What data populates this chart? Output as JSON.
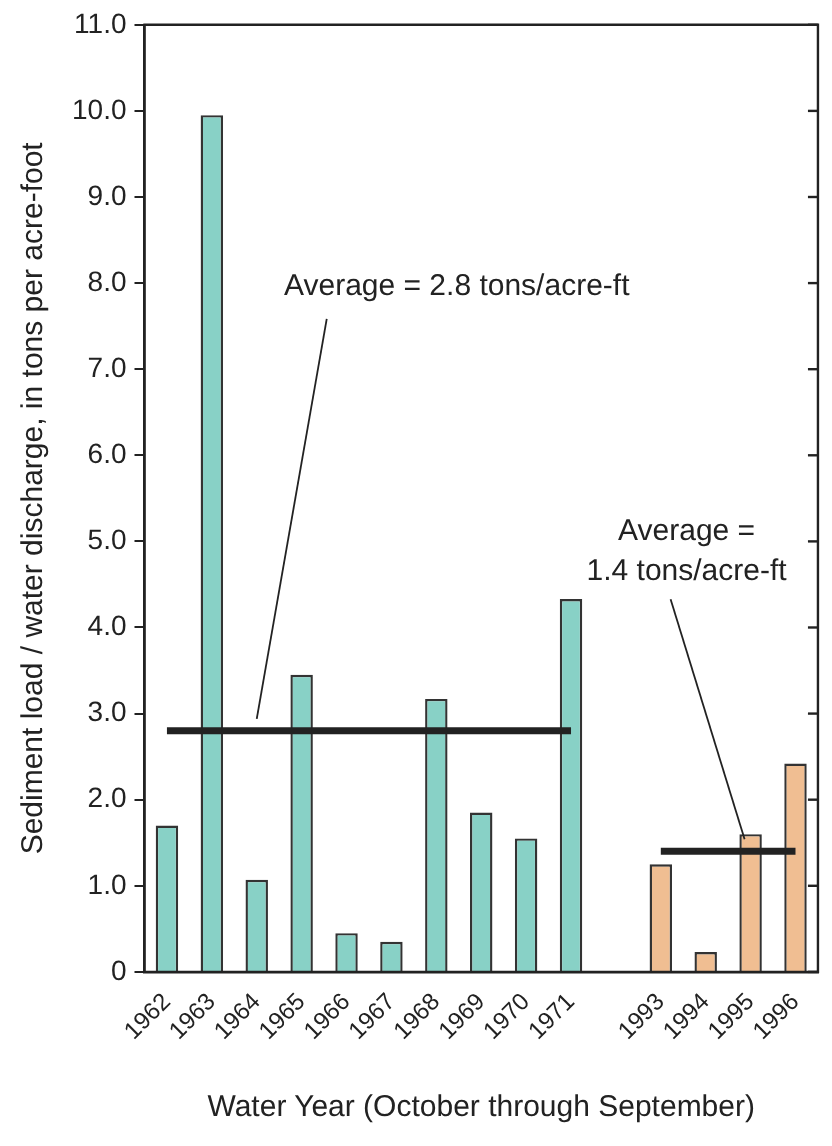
{
  "chart_data": {
    "type": "bar",
    "xlabel": "Water Year (October through September)",
    "ylabel": "Sediment load / water discharge, in tons per acre-foot",
    "categories": [
      "1962",
      "1963",
      "1964",
      "1965",
      "1966",
      "1967",
      "1968",
      "1969",
      "1970",
      "1971",
      null,
      "1993",
      "1994",
      "1995",
      "1996"
    ],
    "series": [
      {
        "values": [
          1.7,
          9.95,
          1.07,
          3.45,
          0.45,
          0.35,
          3.17,
          1.85,
          1.55,
          4.33,
          null,
          1.25,
          0.23,
          1.6,
          2.42
        ],
        "colors": [
          "#88d1c6",
          "#88d1c6",
          "#88d1c6",
          "#88d1c6",
          "#88d1c6",
          "#88d1c6",
          "#88d1c6",
          "#88d1c6",
          "#88d1c6",
          "#88d1c6",
          null,
          "#f0be92",
          "#f0be92",
          "#f0be92",
          "#f0be92"
        ]
      },
      {
        "type": "line",
        "color": "#222222",
        "values": [
          2.8,
          2.8,
          2.8,
          2.8,
          2.8,
          2.8,
          2.8,
          2.8,
          2.8,
          2.8,
          null,
          null,
          null,
          null,
          null
        ]
      },
      {
        "type": "line",
        "color": "#222222",
        "values": [
          null,
          null,
          null,
          null,
          null,
          null,
          null,
          null,
          null,
          null,
          null,
          1.4,
          1.4,
          1.4,
          1.4
        ]
      }
    ],
    "ylim": [
      0,
      11
    ],
    "yticks": [
      0,
      {
        "value": 1,
        "label": "1.0"
      },
      {
        "value": 2,
        "label": "2.0"
      },
      {
        "value": 3,
        "label": "3.0"
      },
      {
        "value": 4,
        "label": "4.0"
      },
      {
        "value": 5,
        "label": "5.0"
      },
      {
        "value": 6,
        "label": "6.0"
      },
      {
        "value": 7,
        "label": "7.0"
      },
      {
        "value": 8,
        "label": "8.0"
      },
      {
        "value": 9,
        "label": "9.0"
      },
      {
        "value": 10,
        "label": "10.0"
      },
      {
        "value": 11,
        "label": "11.0"
      }
    ],
    "annotations": [
      {
        "text": "Average = 2.8 tons/acre-ft",
        "x": "1964",
        "y": 2.8
      },
      {
        "text": "Average =\n1.4 tons/acre-ft",
        "x": "1995",
        "y": 1.4
      }
    ],
    "grid": false,
    "legend": false,
    "marker": "none",
    "line_style": "solid"
  }
}
